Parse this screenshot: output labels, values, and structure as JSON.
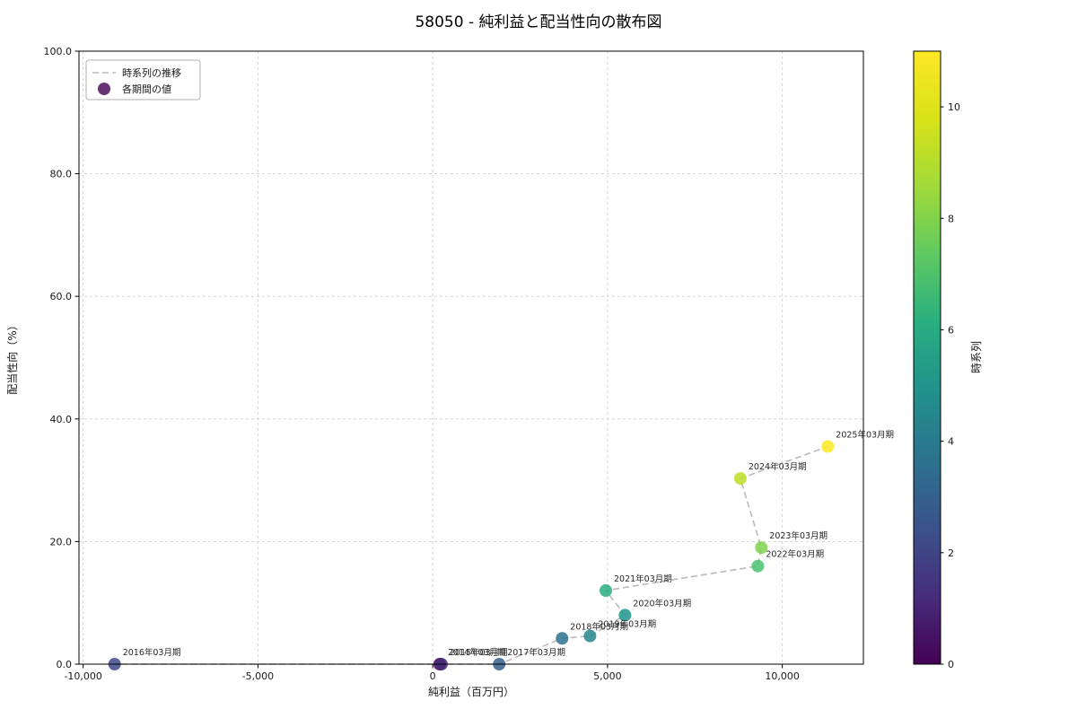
{
  "title": "58050 - 純利益と配当性向の散布図",
  "legend": {
    "items": [
      {
        "label": "時系列の推移",
        "marker": "dashed-line"
      },
      {
        "label": "各期間の値",
        "marker": "dot",
        "marker_color": "#440154"
      }
    ]
  },
  "colorbar": {
    "label": "時系列",
    "vmin": 0,
    "vmax": 11,
    "ticks": [
      {
        "v": 0,
        "label": "0"
      },
      {
        "v": 2,
        "label": "2"
      },
      {
        "v": 4,
        "label": "4"
      },
      {
        "v": 6,
        "label": "6"
      },
      {
        "v": 8,
        "label": "8"
      },
      {
        "v": 10,
        "label": "10"
      }
    ],
    "gradient": [
      "#440154",
      "#472d7b",
      "#3b528b",
      "#2c728e",
      "#21918c",
      "#28ae80",
      "#5ec962",
      "#a0da39",
      "#d8e219",
      "#fde725"
    ]
  },
  "chart_data": {
    "type": "scatter",
    "title": "58050 - 純利益と配当性向の散布図",
    "xlabel": "純利益（百万円）",
    "ylabel": "配当性向（%）",
    "xlim": [
      -10120,
      12320
    ],
    "ylim": [
      0,
      100
    ],
    "grid": true,
    "legend_position": "upper left",
    "line_color": "#b3b3b3",
    "xticks": [
      {
        "v": -10000,
        "label": "-10,000"
      },
      {
        "v": -5000,
        "label": "-5,000"
      },
      {
        "v": 0,
        "label": "0"
      },
      {
        "v": 5000,
        "label": "5,000"
      },
      {
        "v": 10000,
        "label": "10,000"
      }
    ],
    "yticks": [
      {
        "v": 0,
        "label": "0.0"
      },
      {
        "v": 20,
        "label": "20.0"
      },
      {
        "v": 40,
        "label": "40.0"
      },
      {
        "v": 60,
        "label": "60.0"
      },
      {
        "v": 80,
        "label": "80.0"
      },
      {
        "v": 100,
        "label": "100.0"
      }
    ],
    "series": [
      {
        "name": "各期間の値",
        "points": [
          {
            "period": "2014年03月期",
            "x": 200,
            "y": 0.0,
            "t": 0,
            "color": "#440154"
          },
          {
            "period": "2015年03月期",
            "x": 250,
            "y": 0.0,
            "t": 1,
            "color": "#472d7b"
          },
          {
            "period": "2016年03月期",
            "x": -9100,
            "y": 0.0,
            "t": 2,
            "color": "#3e4a89"
          },
          {
            "period": "2017年03月期",
            "x": 1900,
            "y": 0.0,
            "t": 3,
            "color": "#35608d"
          },
          {
            "period": "2018年03月期",
            "x": 3700,
            "y": 4.2,
            "t": 4,
            "color": "#2c728e"
          },
          {
            "period": "2019年03月期",
            "x": 4500,
            "y": 4.6,
            "t": 5,
            "color": "#24858e"
          },
          {
            "period": "2020年03月期",
            "x": 5500,
            "y": 8.0,
            "t": 6,
            "color": "#1f978b"
          },
          {
            "period": "2021年03月期",
            "x": 4950,
            "y": 12.0,
            "t": 7,
            "color": "#27ad81"
          },
          {
            "period": "2022年03月期",
            "x": 9300,
            "y": 16.0,
            "t": 8,
            "color": "#4ac16d"
          },
          {
            "period": "2023年03月期",
            "x": 9400,
            "y": 19.0,
            "t": 9,
            "color": "#7fd34e"
          },
          {
            "period": "2024年03月期",
            "x": 8800,
            "y": 30.3,
            "t": 10,
            "color": "#bddf26"
          },
          {
            "period": "2025年03月期",
            "x": 11300,
            "y": 35.5,
            "t": 11,
            "color": "#fde725"
          }
        ]
      }
    ]
  }
}
